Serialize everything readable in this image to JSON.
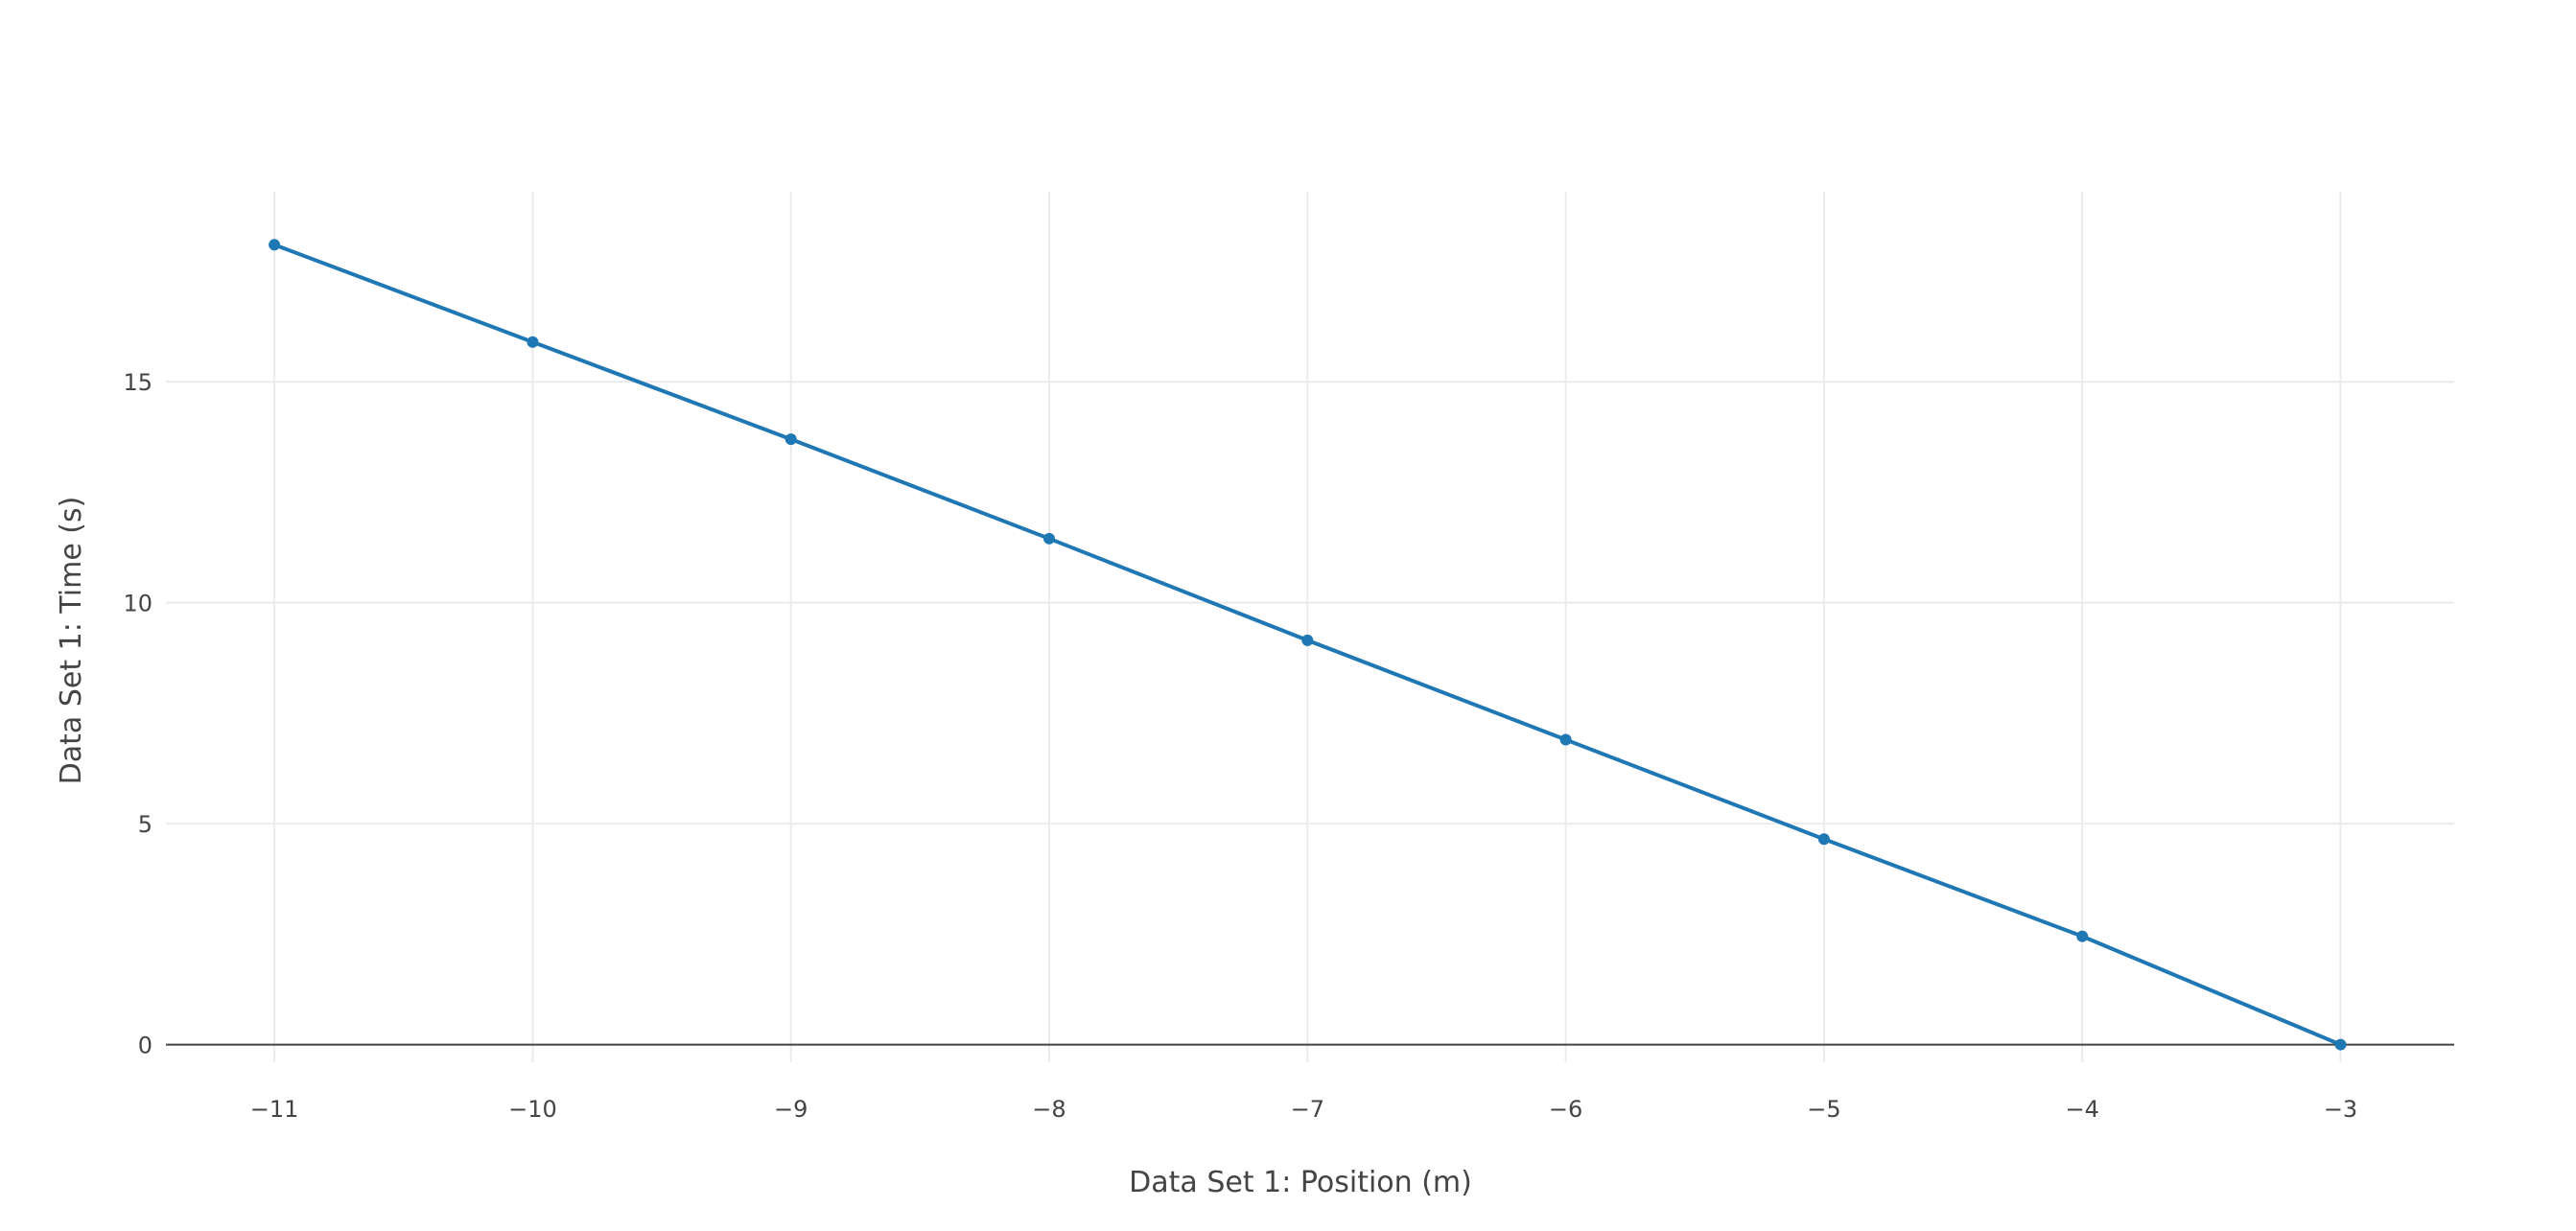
{
  "chart_data": {
    "type": "line",
    "xlabel": "Data Set 1: Position (m)",
    "ylabel": "Data Set 1: Time (s)",
    "xlim": [
      -11.42,
      -2.56
    ],
    "ylim": [
      -0.4,
      19.3
    ],
    "xticks": [
      -11,
      -10,
      -9,
      -8,
      -7,
      -6,
      -5,
      -4,
      -3
    ],
    "xtick_labels": [
      "−11",
      "−10",
      "−9",
      "−8",
      "−7",
      "−6",
      "−5",
      "−4",
      "−3"
    ],
    "yticks": [
      0,
      5,
      10,
      15
    ],
    "ytick_labels": [
      "0",
      "5",
      "10",
      "15"
    ],
    "grid": true,
    "series": [
      {
        "color": "#1f77b4",
        "x": [
          -11,
          -10,
          -9,
          -8,
          -7,
          -6,
          -5,
          -4,
          -3
        ],
        "y": [
          18.1,
          15.9,
          13.7,
          11.45,
          9.15,
          6.9,
          4.65,
          2.45,
          0
        ]
      }
    ]
  }
}
